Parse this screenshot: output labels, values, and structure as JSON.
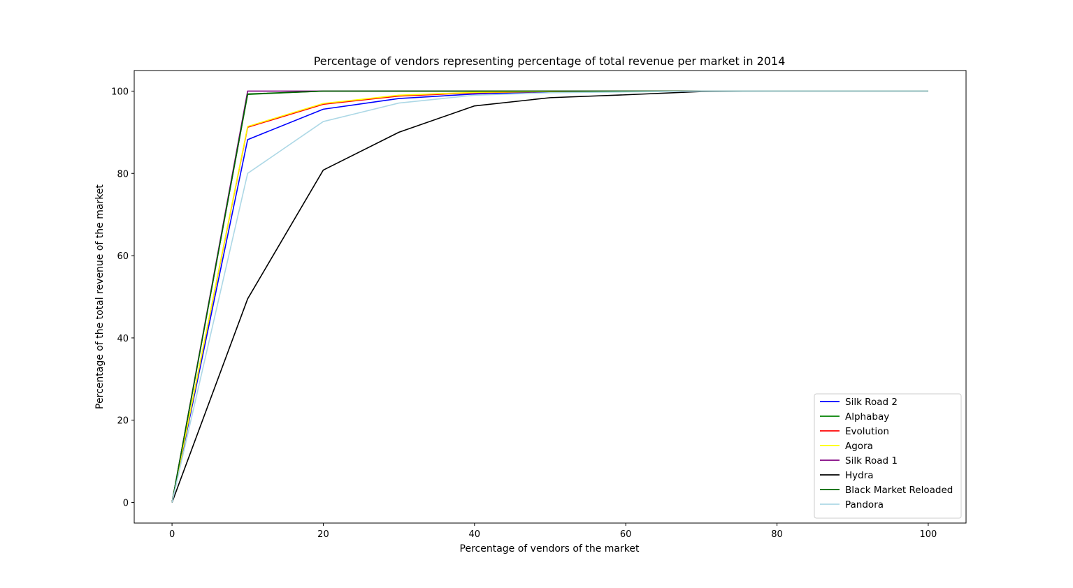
{
  "chart_data": {
    "type": "line",
    "title": "Percentage of vendors representing percentage of total revenue per market in 2014",
    "xlabel": "Percentage of vendors of the market",
    "ylabel": "Percentage of the total revenue of the market",
    "xlim": [
      -5,
      105
    ],
    "ylim": [
      -5,
      105
    ],
    "xticks": [
      0,
      20,
      40,
      60,
      80,
      100
    ],
    "yticks": [
      0,
      20,
      40,
      60,
      80,
      100
    ],
    "grid": false,
    "legend_position": "lower-right",
    "x": [
      0,
      10,
      20,
      30,
      40,
      50,
      60,
      70,
      80,
      90,
      100
    ],
    "series": [
      {
        "name": "Silk Road 2",
        "color": "#0000ff",
        "values": [
          0,
          88.2,
          95.6,
          98.2,
          99.3,
          99.8,
          99.9,
          100,
          100,
          100,
          100
        ]
      },
      {
        "name": "Alphabay",
        "color": "#008000",
        "values": [
          0,
          99.2,
          100,
          100,
          100,
          100,
          100,
          100,
          100,
          100,
          100
        ]
      },
      {
        "name": "Evolution",
        "color": "#ff0000",
        "values": [
          0,
          91.2,
          96.8,
          98.8,
          99.6,
          99.9,
          100,
          100,
          100,
          100,
          100
        ]
      },
      {
        "name": "Agora",
        "color": "#ffff00",
        "values": [
          0,
          91.4,
          97.0,
          99.0,
          99.7,
          99.9,
          100,
          100,
          100,
          100,
          100
        ]
      },
      {
        "name": "Silk Road 1",
        "color": "#800080",
        "values": [
          0,
          100,
          100,
          100,
          100,
          100,
          100,
          100,
          100,
          100,
          100
        ]
      },
      {
        "name": "Hydra",
        "color": "#000000",
        "values": [
          0,
          49.5,
          80.8,
          90.0,
          96.4,
          98.4,
          99.1,
          99.9,
          100,
          100,
          100
        ]
      },
      {
        "name": "Black Market Reloaded",
        "color": "#006400",
        "values": [
          0,
          99.3,
          100,
          100,
          100,
          100,
          100,
          100,
          100,
          100,
          100
        ]
      },
      {
        "name": "Pandora",
        "color": "#add8e6",
        "values": [
          0,
          80.0,
          92.6,
          97.1,
          99.0,
          99.6,
          99.8,
          100,
          100,
          100,
          100
        ]
      }
    ]
  }
}
